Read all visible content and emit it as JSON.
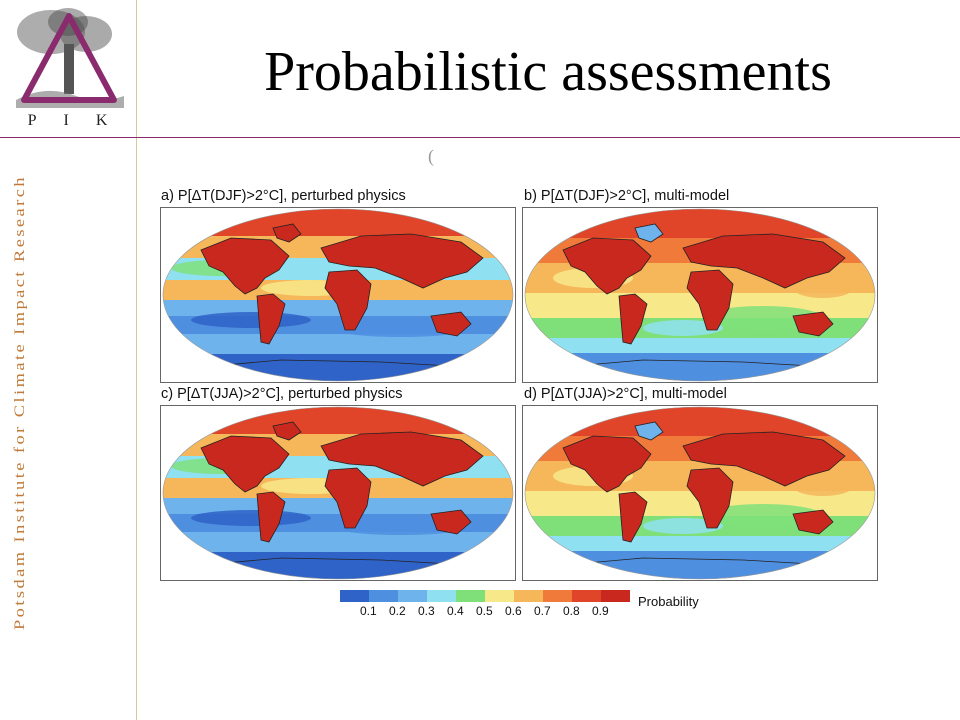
{
  "slide": {
    "title": "Probabilistic assessments",
    "sidebar_text": "Potsdam Institute for Climate Impact Research",
    "logo_letters": [
      "P",
      "I",
      "K"
    ],
    "stray_mark": "("
  },
  "panels": [
    {
      "title": "a) P[ΔT(DJF)>2°C], perturbed physics",
      "variant": 0
    },
    {
      "title": "b) P[ΔT(DJF)>2°C], multi-model",
      "variant": 1
    },
    {
      "title": "c) P[ΔT(JJA)>2°C], perturbed physics",
      "variant": 2
    },
    {
      "title": "d) P[ΔT(JJA)>2°C], multi-model",
      "variant": 3
    }
  ],
  "legend": {
    "title": "Probability",
    "ticks": [
      "0.1",
      "0.2",
      "0.3",
      "0.4",
      "0.5",
      "0.6",
      "0.7",
      "0.8",
      "0.9"
    ],
    "colors": [
      "#2f63c8",
      "#4f8fe0",
      "#6fb3ec",
      "#8fe0f0",
      "#7fe07a",
      "#f7e98a",
      "#f6b65a",
      "#f07a3a",
      "#e0452a",
      "#c8281e"
    ]
  },
  "colors": {
    "accent_line": "#8a2b6e",
    "sidebar_text": "#c07a3a",
    "ocean_low": "#3d70d0",
    "land_high": "#d23a22"
  }
}
